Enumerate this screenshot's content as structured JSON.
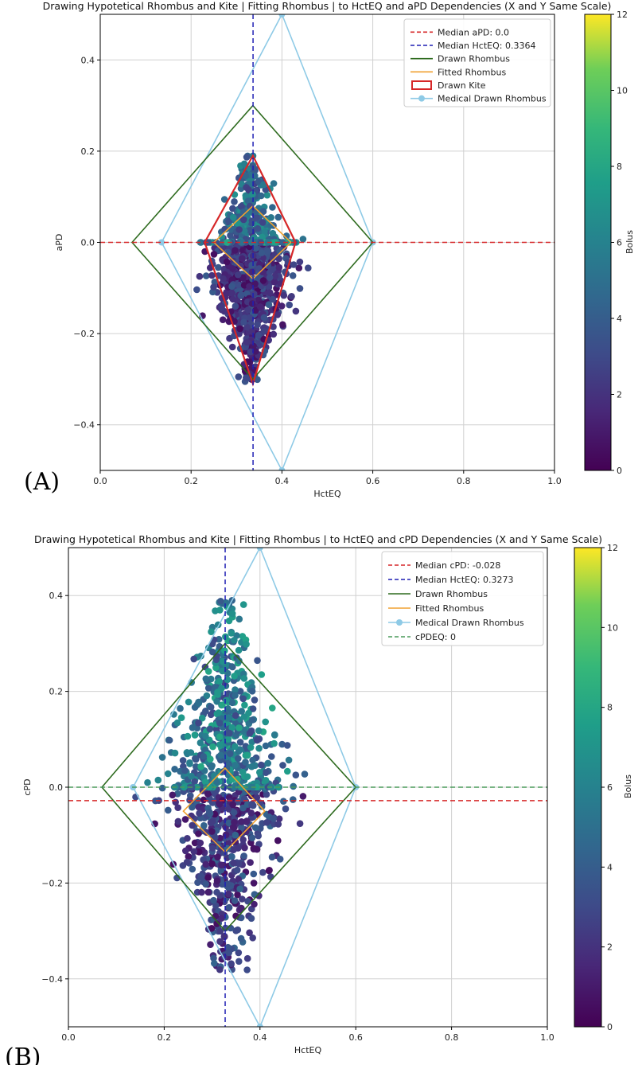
{
  "chart_data": [
    {
      "type": "scatter",
      "panel_label": "(A)",
      "title": "Drawing Hypotetical Rhombus and Kite | Fitting Rhombus | to HctEQ and aPD Dependencies (X and Y Same Scale)",
      "xlabel": "HctEQ",
      "ylabel": "aPD",
      "xlim": [
        0.0,
        1.0
      ],
      "ylim": [
        -0.5,
        0.5
      ],
      "xticks": [
        "0.0",
        "0.2",
        "0.4",
        "0.6",
        "0.8",
        "1.0"
      ],
      "yticks": [
        "−0.4",
        "−0.2",
        "0.0",
        "0.2",
        "0.4"
      ],
      "grid": true,
      "colorbar": {
        "label": "Bolus",
        "min": 0,
        "max": 12,
        "ticks": [
          "0",
          "2",
          "4",
          "6",
          "8",
          "10",
          "12"
        ]
      },
      "legend": {
        "position": "top-right",
        "entries": [
          {
            "label": "Median aPD: 0.0",
            "style": "dashed",
            "color": "#d62728"
          },
          {
            "label": "Median HctEQ: 0.3364",
            "style": "dashed",
            "color": "#1f1fb4"
          },
          {
            "label": "Drawn Rhombus",
            "style": "solid",
            "color": "#2e6b1f"
          },
          {
            "label": "Fitted Rhombus",
            "style": "solid",
            "color": "#f0a030"
          },
          {
            "label": "Drawn Kite",
            "style": "box",
            "color": "#d62728"
          },
          {
            "label": "Medical Drawn Rhombus",
            "style": "marker-line",
            "color": "#8ecae6"
          }
        ]
      },
      "median_x": 0.3364,
      "median_y": 0.0,
      "scatter_cloud": {
        "center_x": 0.33,
        "spread_x": 0.045,
        "y_min": -0.31,
        "y_max": 0.19,
        "color_min": 0,
        "color_max": 7
      },
      "drawn_rhombus": [
        [
          0.07,
          0.0
        ],
        [
          0.336,
          0.3
        ],
        [
          0.6,
          0.0
        ],
        [
          0.336,
          -0.3
        ]
      ],
      "fitted_rhombus": [
        [
          0.25,
          0.0
        ],
        [
          0.336,
          0.08
        ],
        [
          0.42,
          0.0
        ],
        [
          0.336,
          -0.08
        ]
      ],
      "drawn_kite": [
        [
          0.23,
          0.0
        ],
        [
          0.336,
          0.19
        ],
        [
          0.43,
          0.0
        ],
        [
          0.336,
          -0.31
        ]
      ],
      "medical_rhombus": [
        [
          0.135,
          0.0
        ],
        [
          0.4,
          0.5
        ],
        [
          0.6,
          0.0
        ],
        [
          0.4,
          -0.5
        ]
      ]
    },
    {
      "type": "scatter",
      "panel_label": "(B)",
      "title": "Drawing Hypotetical Rhombus and Kite | Fitting Rhombus | to HctEQ and cPD Dependencies (X and Y Same Scale)",
      "xlabel": "HctEQ",
      "ylabel": "cPD",
      "xlim": [
        0.0,
        1.0
      ],
      "ylim": [
        -0.5,
        0.5
      ],
      "xticks": [
        "0.0",
        "0.2",
        "0.4",
        "0.6",
        "0.8",
        "1.0"
      ],
      "yticks": [
        "−0.4",
        "−0.2",
        "0.0",
        "0.2",
        "0.4"
      ],
      "grid": true,
      "colorbar": {
        "label": "Bolus",
        "min": 0,
        "max": 12,
        "ticks": [
          "0",
          "2",
          "4",
          "6",
          "8",
          "10",
          "12"
        ]
      },
      "legend": {
        "position": "top-right",
        "entries": [
          {
            "label": "Median cPD: -0.028",
            "style": "dashed",
            "color": "#d62728"
          },
          {
            "label": "Median HctEQ: 0.3273",
            "style": "dashed",
            "color": "#1f1fb4"
          },
          {
            "label": "Drawn Rhombus",
            "style": "solid",
            "color": "#2e6b1f"
          },
          {
            "label": "Fitted Rhombus",
            "style": "solid",
            "color": "#f0a030"
          },
          {
            "label": "Medical Drawn Rhombus",
            "style": "marker-line",
            "color": "#8ecae6"
          },
          {
            "label": "cPDEQ: 0",
            "style": "dashed",
            "color": "#4a9a5a"
          }
        ]
      },
      "median_x": 0.3273,
      "median_y": -0.028,
      "eq_line_y": 0.0,
      "scatter_cloud": {
        "center_x": 0.33,
        "spread_x": 0.065,
        "y_min": -0.39,
        "y_max": 0.39,
        "color_min": 0,
        "color_max": 8
      },
      "drawn_rhombus": [
        [
          0.07,
          0.0
        ],
        [
          0.327,
          0.3
        ],
        [
          0.6,
          0.0
        ],
        [
          0.327,
          -0.3
        ]
      ],
      "fitted_rhombus": [
        [
          0.24,
          -0.05
        ],
        [
          0.327,
          0.04
        ],
        [
          0.41,
          -0.05
        ],
        [
          0.327,
          -0.135
        ]
      ],
      "medical_rhombus": [
        [
          0.135,
          0.0
        ],
        [
          0.4,
          0.5
        ],
        [
          0.6,
          0.0
        ],
        [
          0.4,
          -0.5
        ]
      ]
    }
  ]
}
